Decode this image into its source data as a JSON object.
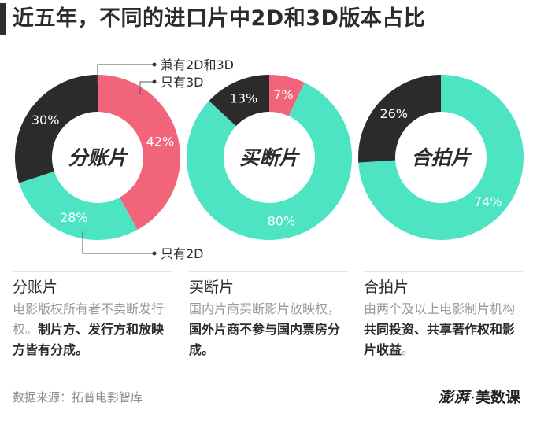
{
  "title": "近五年，不同的进口片中2D和3D版本占比",
  "colors": {
    "both_2d_3d": "#2b2b2b",
    "only_3d": "#f26479",
    "only_2d": "#4de4c4",
    "accent_bar": "#2e2e2e"
  },
  "legend": {
    "both": "兼有2D和3D",
    "only_3d": "只有3D",
    "only_2d": "只有2D"
  },
  "chart_data": [
    {
      "type": "pie",
      "center_label": "分账片",
      "categories": [
        "只有3D",
        "只有2D",
        "兼有2D和3D"
      ],
      "values": [
        42,
        28,
        30
      ],
      "labels": [
        "42%",
        "28%",
        "30%"
      ]
    },
    {
      "type": "pie",
      "center_label": "买断片",
      "categories": [
        "只有3D",
        "只有2D",
        "兼有2D和3D"
      ],
      "values": [
        7,
        80,
        13
      ],
      "labels": [
        "7%",
        "80%",
        "13%"
      ]
    },
    {
      "type": "pie",
      "center_label": "合拍片",
      "categories": [
        "只有3D",
        "只有2D",
        "兼有2D和3D"
      ],
      "values": [
        0,
        74,
        26
      ],
      "labels": [
        "",
        "74%",
        "26%"
      ]
    }
  ],
  "descriptions": [
    {
      "title": "分账片",
      "plain": "电影版权所有者不卖断发行权。",
      "bold": "制片方、发行方和放映方皆有分成。"
    },
    {
      "title": "买断片",
      "plain": "国内片商买断影片放映权，",
      "bold": "国外片商不参与国内票房分成。"
    },
    {
      "title": "合拍片",
      "plain": "由两个及以上电影制片机构",
      "bold": "共同投资、共享著作权和影片收益",
      "tail": "。"
    }
  ],
  "source": "数据来源：拓普电影智库",
  "logo": {
    "brand": "澎湃",
    "dot": "·",
    "name": "美数课"
  }
}
